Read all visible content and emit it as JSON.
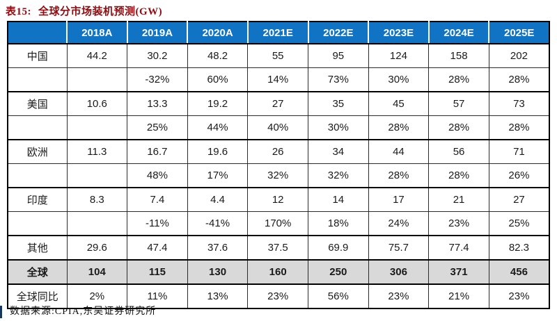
{
  "title": {
    "tag": "表15:",
    "text": "全球分市场装机预测(GW)"
  },
  "footer": {
    "text": "数据来源:CPIA,东吴证券研究所"
  },
  "colors": {
    "title_red": "#8e0c10",
    "header_blue": "#1173c4",
    "header_text": "#ffffff",
    "total_row_gray": "#d9d9d9",
    "border_black": "#000000",
    "footer_bar_navy": "#17375e"
  },
  "chart_data": {
    "type": "table",
    "title": "全球分市场装机预测(GW)",
    "columns": [
      "",
      "2018A",
      "2019A",
      "2020A",
      "2021E",
      "2022E",
      "2023E",
      "2024E",
      "2025E"
    ],
    "rows": [
      {
        "name": "row-china",
        "label": "中国",
        "style": "value",
        "group_start": false,
        "values": [
          "44.2",
          "30.2",
          "48.2",
          "55",
          "95",
          "124",
          "158",
          "202"
        ]
      },
      {
        "name": "row-china-yoy",
        "label": "",
        "style": "growth",
        "group_start": false,
        "values": [
          "",
          "-32%",
          "60%",
          "14%",
          "73%",
          "30%",
          "28%",
          "28%"
        ]
      },
      {
        "name": "row-usa",
        "label": "美国",
        "style": "value",
        "group_start": true,
        "values": [
          "10.6",
          "13.3",
          "19.2",
          "27",
          "35",
          "45",
          "57",
          "73"
        ]
      },
      {
        "name": "row-usa-yoy",
        "label": "",
        "style": "growth",
        "group_start": false,
        "values": [
          "",
          "25%",
          "44%",
          "40%",
          "30%",
          "28%",
          "28%",
          "28%"
        ]
      },
      {
        "name": "row-europe",
        "label": "欧洲",
        "style": "value",
        "group_start": true,
        "values": [
          "11.3",
          "16.7",
          "19.6",
          "26",
          "34",
          "44",
          "56",
          "71"
        ]
      },
      {
        "name": "row-europe-yoy",
        "label": "",
        "style": "growth",
        "group_start": false,
        "values": [
          "",
          "48%",
          "17%",
          "32%",
          "32%",
          "28%",
          "28%",
          "26%"
        ]
      },
      {
        "name": "row-india",
        "label": "印度",
        "style": "value",
        "group_start": true,
        "values": [
          "8.3",
          "7.4",
          "4.4",
          "12",
          "14",
          "17",
          "21",
          "27"
        ]
      },
      {
        "name": "row-india-yoy",
        "label": "",
        "style": "growth",
        "group_start": false,
        "values": [
          "",
          "-11%",
          "-41%",
          "170%",
          "18%",
          "24%",
          "23%",
          "25%"
        ]
      },
      {
        "name": "row-others",
        "label": "其他",
        "style": "value",
        "group_start": true,
        "values": [
          "29.6",
          "47.4",
          "37.6",
          "37.5",
          "69.9",
          "75.7",
          "77.4",
          "82.3"
        ]
      },
      {
        "name": "row-global",
        "label": "全球",
        "style": "total",
        "group_start": true,
        "values": [
          "104",
          "115",
          "130",
          "160",
          "250",
          "306",
          "371",
          "456"
        ]
      },
      {
        "name": "row-global-yoy",
        "label": "全球同比",
        "style": "value",
        "group_start": true,
        "values": [
          "2%",
          "11%",
          "13%",
          "23%",
          "56%",
          "23%",
          "21%",
          "23%"
        ]
      }
    ]
  }
}
